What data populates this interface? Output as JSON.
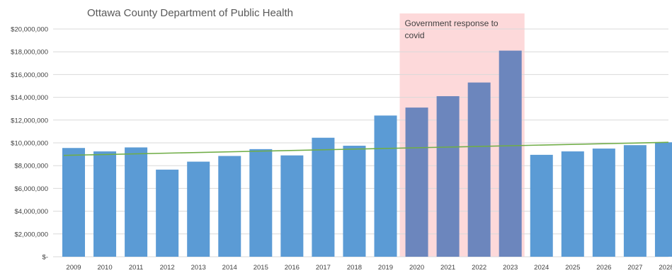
{
  "chart_data": {
    "type": "bar",
    "title": "Ottawa County Department of Public Health",
    "xlabel": "",
    "ylabel": "",
    "categories": [
      "2009",
      "2010",
      "2011",
      "2012",
      "2013",
      "2014",
      "2015",
      "2016",
      "2017",
      "2018",
      "2019",
      "2020",
      "2021",
      "2022",
      "2023",
      "2024",
      "2025",
      "2026",
      "2027",
      "2028"
    ],
    "values": [
      9550000,
      9250000,
      9600000,
      7650000,
      8350000,
      8850000,
      9450000,
      8900000,
      10450000,
      9750000,
      12400000,
      13100000,
      14100000,
      15300000,
      18100000,
      8950000,
      9250000,
      9500000,
      9800000,
      10050000
    ],
    "ylim": [
      0,
      20000000
    ],
    "yticks": [
      {
        "value": 0,
        "label": "$-"
      },
      {
        "value": 2000000,
        "label": "$2,000,000"
      },
      {
        "value": 4000000,
        "label": "$4,000,000"
      },
      {
        "value": 6000000,
        "label": "$6,000,000"
      },
      {
        "value": 8000000,
        "label": "$8,000,000"
      },
      {
        "value": 10000000,
        "label": "$10,000,000"
      },
      {
        "value": 12000000,
        "label": "$12,000,000"
      },
      {
        "value": 14000000,
        "label": "$14,000,000"
      },
      {
        "value": 16000000,
        "label": "$16,000,000"
      },
      {
        "value": 18000000,
        "label": "$18,000,000"
      },
      {
        "value": 20000000,
        "label": "$20,000,000"
      }
    ],
    "grid": true,
    "trendline": {
      "start_value": 8900000,
      "end_value": 10050000
    },
    "highlight": {
      "from_category": "2020",
      "to_category": "2023",
      "text_lines": [
        "Government response to",
        "covid"
      ]
    },
    "colors": {
      "bar": "#5b9bd5",
      "bar_highlighted": "#6c86bd",
      "highlight_band": "#fdd9da",
      "trendline": "#70ad47",
      "grid": "#d9d9d9"
    }
  }
}
